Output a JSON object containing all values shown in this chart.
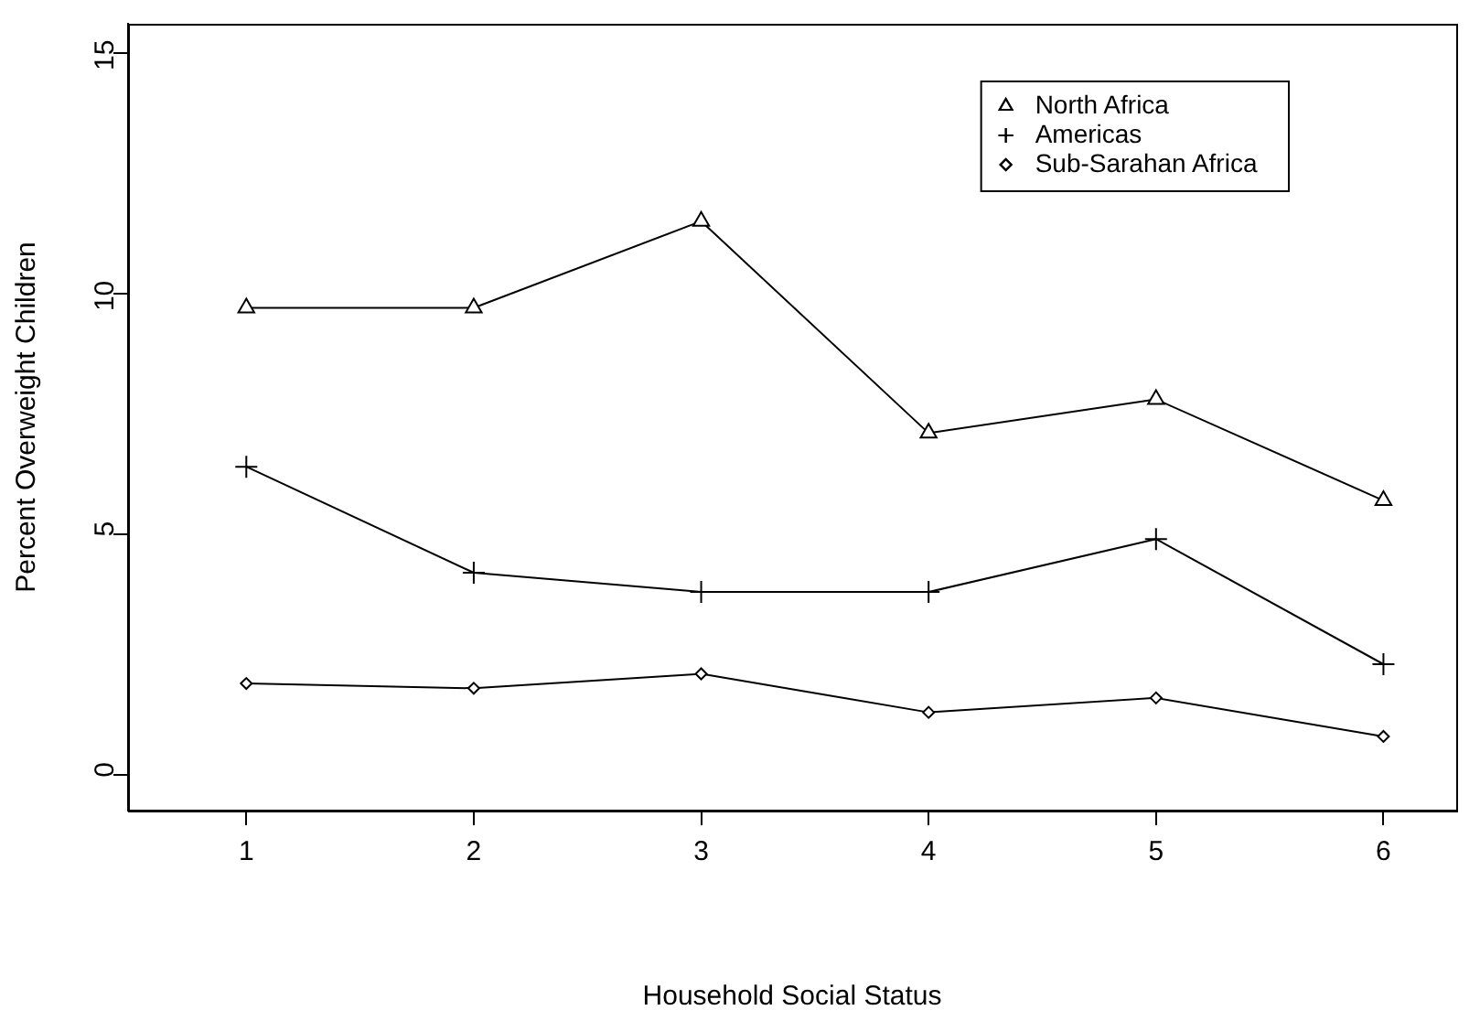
{
  "chart_data": {
    "type": "line",
    "xlabel": "Household Social Status",
    "ylabel": "Percent Overweight Children",
    "x": [
      1,
      2,
      3,
      4,
      5,
      6
    ],
    "xlim": [
      0.48,
      6.32
    ],
    "xticks": [
      1,
      2,
      3,
      4,
      5,
      6
    ],
    "ylim": [
      -0.74,
      15.6
    ],
    "yticks": [
      0,
      5,
      10,
      15
    ],
    "series": [
      {
        "name": "North Africa",
        "color": "#000000",
        "marker": "triangle",
        "values": [
          9.7,
          9.7,
          11.5,
          7.1,
          7.8,
          5.7
        ]
      },
      {
        "name": "Americas",
        "color": "#000000",
        "marker": "cross",
        "values": [
          6.4,
          4.2,
          3.8,
          3.8,
          4.9,
          2.3
        ]
      },
      {
        "name": "Sub-Sarahan Africa",
        "color": "#000000",
        "marker": "diamond",
        "values": [
          1.9,
          1.8,
          2.1,
          1.3,
          1.6,
          0.8
        ]
      }
    ],
    "grid": false,
    "legend": "top right",
    "line_style": "solid"
  }
}
